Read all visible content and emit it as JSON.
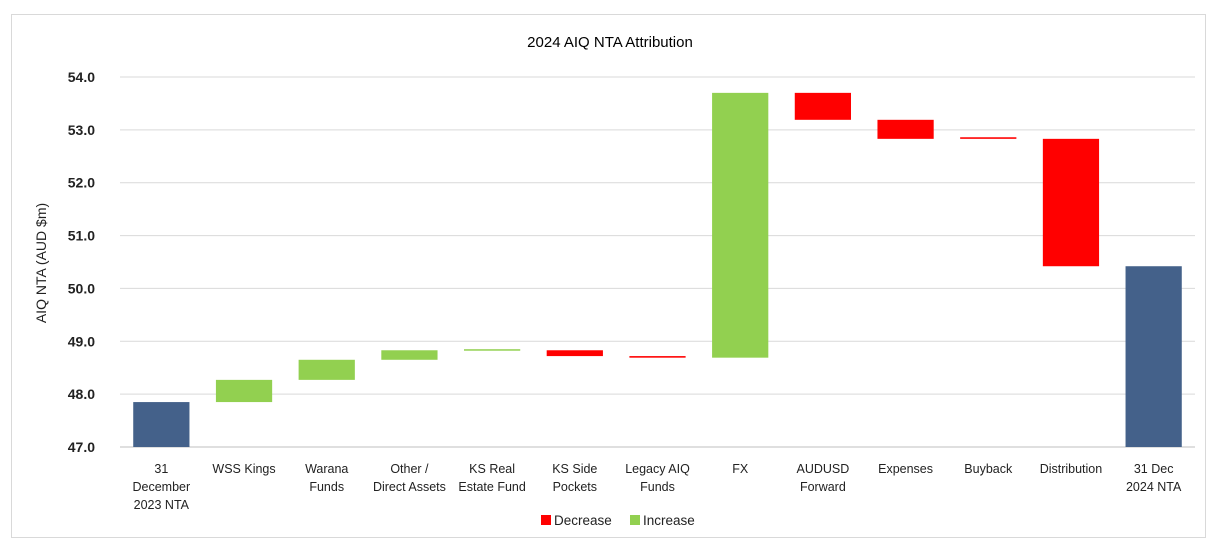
{
  "chart_data": {
    "type": "bar",
    "subtype": "waterfall",
    "title": "2024 AIQ NTA Attribution",
    "xlabel": "",
    "ylabel": "AIQ NTA (AUD $m)",
    "ylim": [
      47.0,
      54.0
    ],
    "yticks": [
      "47.0",
      "48.0",
      "49.0",
      "50.0",
      "51.0",
      "52.0",
      "53.0",
      "54.0"
    ],
    "grid": true,
    "legend_position": "bottom",
    "legend": [
      {
        "name": "Decrease",
        "color": "#ff0000"
      },
      {
        "name": "Increase",
        "color": "#92d050"
      }
    ],
    "colors": {
      "total": "#44618a",
      "increase": "#92d050",
      "decrease": "#ff0000"
    },
    "categories": [
      [
        "31",
        "December",
        "2023 NTA"
      ],
      [
        "WSS Kings"
      ],
      [
        "Warana",
        "Funds"
      ],
      [
        "Other /",
        "Direct Assets"
      ],
      [
        "KS Real",
        "Estate Fund"
      ],
      [
        "KS Side",
        "Pockets"
      ],
      [
        "Legacy AIQ",
        "Funds"
      ],
      [
        "FX"
      ],
      [
        "AUDUSD",
        "Forward"
      ],
      [
        "Expenses"
      ],
      [
        "Buyback"
      ],
      [
        "Distribution"
      ],
      [
        "31 Dec",
        "2024 NTA"
      ]
    ],
    "bars": [
      {
        "kind": "total",
        "start": 47.0,
        "end": 47.85
      },
      {
        "kind": "increase",
        "start": 47.85,
        "end": 48.27
      },
      {
        "kind": "increase",
        "start": 48.27,
        "end": 48.65
      },
      {
        "kind": "increase",
        "start": 48.65,
        "end": 48.83
      },
      {
        "kind": "increase",
        "start": 48.83,
        "end": 48.85
      },
      {
        "kind": "decrease",
        "start": 48.83,
        "end": 48.72
      },
      {
        "kind": "decrease",
        "start": 48.72,
        "end": 48.69
      },
      {
        "kind": "increase",
        "start": 48.69,
        "end": 53.7
      },
      {
        "kind": "decrease",
        "start": 53.7,
        "end": 53.19
      },
      {
        "kind": "decrease",
        "start": 53.19,
        "end": 52.83
      },
      {
        "kind": "decrease",
        "start": 52.86,
        "end": 52.83
      },
      {
        "kind": "decrease",
        "start": 52.83,
        "end": 50.42
      },
      {
        "kind": "total",
        "start": 47.0,
        "end": 50.42
      }
    ]
  }
}
